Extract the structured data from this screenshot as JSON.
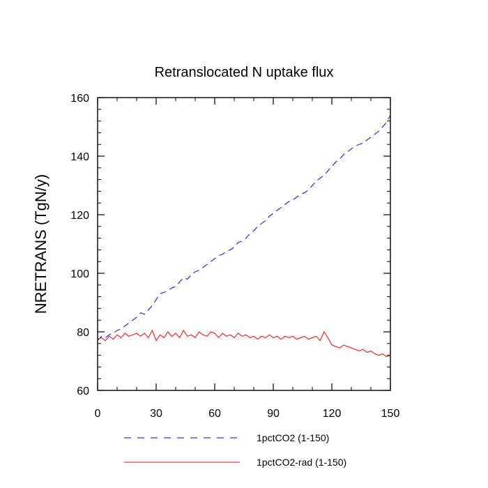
{
  "chart_data": {
    "type": "line",
    "title": "Retranslocated N uptake flux",
    "ylabel": "NRETRANS  (TgN/y)",
    "xlabel": "",
    "xlim": [
      0,
      150
    ],
    "ylim": [
      60,
      160
    ],
    "xticks": [
      0,
      30,
      60,
      90,
      120,
      150
    ],
    "yticks": [
      60,
      80,
      100,
      120,
      140,
      160
    ],
    "grid": false,
    "legend_position": "bottom",
    "series": [
      {
        "name": "1pctCO2 (1-150)",
        "color": "#0000ff",
        "dash": "dashed",
        "x": [
          0,
          2,
          4,
          6,
          8,
          10,
          12,
          14,
          16,
          18,
          20,
          22,
          24,
          26,
          28,
          30,
          32,
          34,
          36,
          38,
          40,
          42,
          44,
          46,
          48,
          50,
          52,
          54,
          56,
          58,
          60,
          62,
          64,
          66,
          68,
          70,
          72,
          74,
          76,
          78,
          80,
          82,
          84,
          86,
          88,
          90,
          92,
          94,
          96,
          98,
          100,
          102,
          104,
          106,
          108,
          110,
          112,
          114,
          116,
          118,
          120,
          122,
          124,
          126,
          128,
          130,
          132,
          134,
          136,
          138,
          140,
          142,
          144,
          146,
          148,
          150
        ],
        "values": [
          77,
          78.5,
          78,
          79,
          79.5,
          80.5,
          81,
          82,
          83,
          84,
          85,
          86.5,
          86,
          87.5,
          89,
          91,
          93,
          93.5,
          94,
          95,
          95.5,
          97,
          98.5,
          98,
          99.5,
          100.5,
          101,
          102,
          103,
          104,
          105,
          106,
          106.5,
          107.5,
          108,
          109,
          110.5,
          111,
          112,
          113.5,
          114.5,
          116,
          117,
          118,
          119.5,
          120.5,
          121.5,
          122.5,
          123.5,
          124.5,
          125,
          126,
          127,
          127.5,
          128.5,
          130,
          131.5,
          132.5,
          133.5,
          135,
          136.5,
          138,
          139,
          140.5,
          141.5,
          142.5,
          143.5,
          144,
          144.5,
          145.5,
          146.5,
          147.5,
          148.5,
          150,
          151.5,
          154
        ]
      },
      {
        "name": "1pctCO2-rad (1-150)",
        "color": "#ff0000",
        "dash": "solid",
        "x": [
          0,
          2,
          4,
          6,
          8,
          10,
          12,
          14,
          16,
          18,
          20,
          22,
          24,
          26,
          28,
          30,
          32,
          34,
          36,
          38,
          40,
          42,
          44,
          46,
          48,
          50,
          52,
          54,
          56,
          58,
          60,
          62,
          64,
          66,
          68,
          70,
          72,
          74,
          76,
          78,
          80,
          82,
          84,
          86,
          88,
          90,
          92,
          94,
          96,
          98,
          100,
          102,
          104,
          106,
          108,
          110,
          112,
          114,
          116,
          118,
          120,
          122,
          124,
          126,
          128,
          130,
          132,
          134,
          136,
          138,
          140,
          142,
          144,
          146,
          148,
          150
        ],
        "values": [
          77.5,
          78,
          77,
          78.5,
          77.5,
          79,
          78,
          79.5,
          78.5,
          79,
          79.5,
          78.5,
          79.5,
          78,
          80.5,
          77,
          79,
          78,
          80,
          78.5,
          79.5,
          78,
          80.5,
          78.5,
          79,
          78,
          80,
          79,
          78.5,
          80,
          79.5,
          78,
          79.5,
          78.5,
          79,
          78,
          79.5,
          78.5,
          79,
          78,
          78.5,
          77.5,
          78.5,
          78,
          79,
          78,
          78.5,
          77.5,
          78.5,
          78,
          78.5,
          77.5,
          78,
          78.5,
          77.5,
          78,
          78.5,
          77,
          80,
          78,
          75.5,
          75,
          74.5,
          75.5,
          75,
          74.5,
          74,
          73.5,
          74,
          73,
          73.5,
          72.5,
          72,
          72.5,
          71.5,
          72
        ]
      }
    ]
  }
}
